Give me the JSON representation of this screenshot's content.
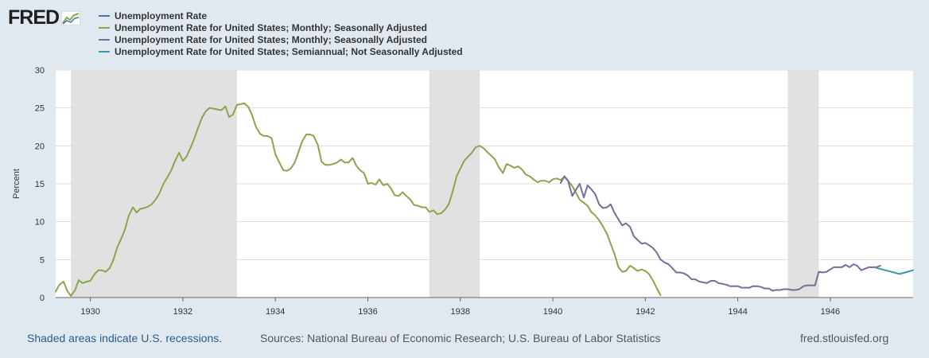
{
  "logo": {
    "text": "FRED",
    "icon": "line-chart-icon"
  },
  "footer": {
    "recessions_note": "Shaded areas indicate U.S. recessions.",
    "sources": "Sources: National Bureau of Economic Research; U.S. Bureau of Labor Statistics",
    "site": "fred.stlouisfed.org"
  },
  "colors": {
    "background": "#e1e9f0",
    "plot": "#ffffff",
    "recession": "#e1e1e1",
    "series1": "#4572a7",
    "series2": "#89a54e",
    "series3": "#80699b",
    "series4": "#3d96ae"
  },
  "chart_data": {
    "type": "line",
    "ylabel": "Percent",
    "ylim": [
      0,
      30
    ],
    "xlim": [
      1929.25,
      1947.79
    ],
    "y_ticks": [
      0,
      5,
      10,
      15,
      20,
      25,
      30
    ],
    "x_ticks": [
      "1930",
      "1932",
      "1934",
      "1936",
      "1938",
      "1940",
      "1942",
      "1944",
      "1946"
    ],
    "x_tick_values": [
      1930,
      1932,
      1934,
      1936,
      1938,
      1940,
      1942,
      1944,
      1946
    ],
    "recessions": [
      [
        1929.58,
        1933.17
      ],
      [
        1937.33,
        1938.42
      ],
      [
        1945.08,
        1945.75
      ]
    ],
    "grid": true,
    "legend_position": "top-left",
    "series": [
      {
        "name": "Unemployment Rate",
        "color": "#4572a7",
        "points": []
      },
      {
        "name": "Unemployment Rate for United States; Monthly; Seasonally Adjusted",
        "color": "#89a54e",
        "points": [
          [
            1929.25,
            0.8
          ],
          [
            1929.33,
            1.7
          ],
          [
            1929.42,
            2.1
          ],
          [
            1929.5,
            0.9
          ],
          [
            1929.58,
            0.2
          ],
          [
            1929.67,
            1.0
          ],
          [
            1929.75,
            2.3
          ],
          [
            1929.83,
            1.9
          ],
          [
            1929.92,
            2.1
          ],
          [
            1930.0,
            2.2
          ],
          [
            1930.08,
            3.0
          ],
          [
            1930.17,
            3.6
          ],
          [
            1930.25,
            3.6
          ],
          [
            1930.33,
            3.4
          ],
          [
            1930.42,
            3.9
          ],
          [
            1930.5,
            5.0
          ],
          [
            1930.58,
            6.6
          ],
          [
            1930.67,
            7.8
          ],
          [
            1930.75,
            9.0
          ],
          [
            1930.83,
            10.8
          ],
          [
            1930.92,
            11.9
          ],
          [
            1931.0,
            11.2
          ],
          [
            1931.08,
            11.7
          ],
          [
            1931.17,
            11.8
          ],
          [
            1931.25,
            12.0
          ],
          [
            1931.33,
            12.3
          ],
          [
            1931.42,
            13.0
          ],
          [
            1931.5,
            13.8
          ],
          [
            1931.58,
            15.0
          ],
          [
            1931.67,
            15.9
          ],
          [
            1931.75,
            16.8
          ],
          [
            1931.83,
            18.0
          ],
          [
            1931.92,
            19.1
          ],
          [
            1932.0,
            18.0
          ],
          [
            1932.08,
            18.6
          ],
          [
            1932.17,
            19.8
          ],
          [
            1932.25,
            21.0
          ],
          [
            1932.33,
            22.4
          ],
          [
            1932.42,
            23.8
          ],
          [
            1932.5,
            24.6
          ],
          [
            1932.58,
            25.0
          ],
          [
            1932.67,
            24.9
          ],
          [
            1932.75,
            24.8
          ],
          [
            1932.83,
            24.7
          ],
          [
            1932.92,
            25.2
          ],
          [
            1933.0,
            23.8
          ],
          [
            1933.08,
            24.1
          ],
          [
            1933.17,
            25.4
          ],
          [
            1933.25,
            25.5
          ],
          [
            1933.33,
            25.6
          ],
          [
            1933.42,
            25.1
          ],
          [
            1933.5,
            24.0
          ],
          [
            1933.58,
            22.5
          ],
          [
            1933.67,
            21.6
          ],
          [
            1933.75,
            21.3
          ],
          [
            1933.83,
            21.3
          ],
          [
            1933.92,
            21.0
          ],
          [
            1934.0,
            18.9
          ],
          [
            1934.08,
            17.9
          ],
          [
            1934.17,
            16.8
          ],
          [
            1934.25,
            16.7
          ],
          [
            1934.33,
            17.0
          ],
          [
            1934.42,
            17.8
          ],
          [
            1934.5,
            19.2
          ],
          [
            1934.58,
            20.6
          ],
          [
            1934.67,
            21.5
          ],
          [
            1934.75,
            21.5
          ],
          [
            1934.83,
            21.3
          ],
          [
            1934.92,
            20.1
          ],
          [
            1935.0,
            17.9
          ],
          [
            1935.08,
            17.5
          ],
          [
            1935.17,
            17.5
          ],
          [
            1935.25,
            17.6
          ],
          [
            1935.33,
            17.8
          ],
          [
            1935.42,
            18.2
          ],
          [
            1935.5,
            17.8
          ],
          [
            1935.58,
            17.8
          ],
          [
            1935.67,
            18.4
          ],
          [
            1935.75,
            17.4
          ],
          [
            1935.83,
            16.8
          ],
          [
            1935.92,
            16.4
          ],
          [
            1936.0,
            15.0
          ],
          [
            1936.08,
            15.1
          ],
          [
            1936.17,
            14.9
          ],
          [
            1936.25,
            15.6
          ],
          [
            1936.33,
            14.8
          ],
          [
            1936.42,
            15.0
          ],
          [
            1936.5,
            14.4
          ],
          [
            1936.58,
            13.5
          ],
          [
            1936.67,
            13.4
          ],
          [
            1936.75,
            13.9
          ],
          [
            1936.83,
            13.4
          ],
          [
            1936.92,
            12.9
          ],
          [
            1937.0,
            12.2
          ],
          [
            1937.08,
            12.1
          ],
          [
            1937.17,
            11.9
          ],
          [
            1937.25,
            11.9
          ],
          [
            1937.33,
            11.3
          ],
          [
            1937.42,
            11.5
          ],
          [
            1937.5,
            11.0
          ],
          [
            1937.58,
            11.1
          ],
          [
            1937.67,
            11.6
          ],
          [
            1937.75,
            12.3
          ],
          [
            1937.83,
            13.9
          ],
          [
            1937.92,
            16.0
          ],
          [
            1938.0,
            17.0
          ],
          [
            1938.08,
            18.0
          ],
          [
            1938.17,
            18.6
          ],
          [
            1938.25,
            19.1
          ],
          [
            1938.33,
            19.8
          ],
          [
            1938.42,
            20.0
          ],
          [
            1938.5,
            19.7
          ],
          [
            1938.58,
            19.2
          ],
          [
            1938.67,
            18.7
          ],
          [
            1938.75,
            18.2
          ],
          [
            1938.83,
            17.2
          ],
          [
            1938.92,
            16.4
          ],
          [
            1939.0,
            17.6
          ],
          [
            1939.08,
            17.4
          ],
          [
            1939.17,
            17.1
          ],
          [
            1939.25,
            17.3
          ],
          [
            1939.33,
            16.9
          ],
          [
            1939.42,
            16.2
          ],
          [
            1939.5,
            16.0
          ],
          [
            1939.58,
            15.6
          ],
          [
            1939.67,
            15.2
          ],
          [
            1939.75,
            15.4
          ],
          [
            1939.83,
            15.4
          ],
          [
            1939.92,
            15.2
          ],
          [
            1940.0,
            15.6
          ],
          [
            1940.08,
            15.7
          ],
          [
            1940.17,
            15.5
          ],
          [
            1940.25,
            15.9
          ],
          [
            1940.33,
            15.4
          ],
          [
            1940.42,
            14.7
          ],
          [
            1940.5,
            13.8
          ],
          [
            1940.58,
            12.9
          ],
          [
            1940.67,
            12.5
          ],
          [
            1940.75,
            12.1
          ],
          [
            1940.83,
            11.3
          ],
          [
            1940.92,
            10.8
          ],
          [
            1941.0,
            10.2
          ],
          [
            1941.08,
            9.4
          ],
          [
            1941.17,
            8.4
          ],
          [
            1941.25,
            7.1
          ],
          [
            1941.33,
            5.8
          ],
          [
            1941.42,
            4.0
          ],
          [
            1941.5,
            3.4
          ],
          [
            1941.58,
            3.5
          ],
          [
            1941.67,
            4.2
          ],
          [
            1941.75,
            3.9
          ],
          [
            1941.83,
            3.5
          ],
          [
            1941.92,
            3.7
          ],
          [
            1942.0,
            3.5
          ],
          [
            1942.08,
            3.1
          ],
          [
            1942.17,
            2.2
          ],
          [
            1942.25,
            1.2
          ],
          [
            1942.33,
            0.3
          ]
        ]
      },
      {
        "name": "Unemployment Rate for United States; Monthly; Seasonally Adjusted",
        "color": "#80699b",
        "points": [
          [
            1940.17,
            15.1
          ],
          [
            1940.25,
            16.0
          ],
          [
            1940.33,
            15.4
          ],
          [
            1940.42,
            13.4
          ],
          [
            1940.5,
            14.2
          ],
          [
            1940.58,
            15.0
          ],
          [
            1940.67,
            13.2
          ],
          [
            1940.75,
            14.8
          ],
          [
            1940.83,
            14.3
          ],
          [
            1940.92,
            13.6
          ],
          [
            1941.0,
            12.3
          ],
          [
            1941.08,
            11.8
          ],
          [
            1941.17,
            11.9
          ],
          [
            1941.25,
            12.3
          ],
          [
            1941.33,
            11.2
          ],
          [
            1941.42,
            10.3
          ],
          [
            1941.5,
            9.5
          ],
          [
            1941.58,
            9.8
          ],
          [
            1941.67,
            9.3
          ],
          [
            1941.75,
            8.1
          ],
          [
            1941.83,
            7.6
          ],
          [
            1941.92,
            7.1
          ],
          [
            1942.0,
            7.2
          ],
          [
            1942.08,
            6.9
          ],
          [
            1942.17,
            6.5
          ],
          [
            1942.25,
            5.9
          ],
          [
            1942.33,
            5.0
          ],
          [
            1942.42,
            4.6
          ],
          [
            1942.5,
            4.4
          ],
          [
            1942.58,
            3.9
          ],
          [
            1942.67,
            3.3
          ],
          [
            1942.75,
            3.3
          ],
          [
            1942.83,
            3.2
          ],
          [
            1942.92,
            2.9
          ],
          [
            1943.0,
            2.4
          ],
          [
            1943.08,
            2.4
          ],
          [
            1943.17,
            2.1
          ],
          [
            1943.25,
            2.0
          ],
          [
            1943.33,
            1.9
          ],
          [
            1943.42,
            2.2
          ],
          [
            1943.5,
            2.2
          ],
          [
            1943.58,
            1.9
          ],
          [
            1943.67,
            1.8
          ],
          [
            1943.75,
            1.7
          ],
          [
            1943.83,
            1.5
          ],
          [
            1943.92,
            1.5
          ],
          [
            1944.0,
            1.5
          ],
          [
            1944.08,
            1.3
          ],
          [
            1944.17,
            1.3
          ],
          [
            1944.25,
            1.3
          ],
          [
            1944.33,
            1.5
          ],
          [
            1944.42,
            1.5
          ],
          [
            1944.5,
            1.4
          ],
          [
            1944.58,
            1.2
          ],
          [
            1944.67,
            1.2
          ],
          [
            1944.75,
            0.9
          ],
          [
            1944.83,
            1.0
          ],
          [
            1944.92,
            1.0
          ],
          [
            1945.0,
            1.1
          ],
          [
            1945.08,
            1.1
          ],
          [
            1945.17,
            1.0
          ],
          [
            1945.25,
            1.0
          ],
          [
            1945.33,
            1.1
          ],
          [
            1945.42,
            1.5
          ],
          [
            1945.5,
            1.6
          ],
          [
            1945.58,
            1.6
          ],
          [
            1945.67,
            1.6
          ],
          [
            1945.75,
            3.4
          ],
          [
            1945.83,
            3.3
          ],
          [
            1945.92,
            3.4
          ],
          [
            1946.0,
            3.7
          ],
          [
            1946.08,
            4.0
          ],
          [
            1946.17,
            4.0
          ],
          [
            1946.25,
            4.0
          ],
          [
            1946.33,
            4.3
          ],
          [
            1946.42,
            4.0
          ],
          [
            1946.5,
            4.4
          ],
          [
            1946.58,
            4.2
          ],
          [
            1946.67,
            3.6
          ],
          [
            1946.75,
            3.8
          ],
          [
            1946.83,
            4.0
          ],
          [
            1946.92,
            4.0
          ],
          [
            1947.0,
            4.0
          ],
          [
            1947.08,
            4.2
          ]
        ]
      },
      {
        "name": "Unemployment Rate for United States; Semiannual; Not Seasonally Adjusted",
        "color": "#3d96ae",
        "points": [
          [
            1947.0,
            3.9
          ],
          [
            1947.5,
            3.1
          ],
          [
            1947.79,
            3.6
          ]
        ]
      }
    ]
  }
}
